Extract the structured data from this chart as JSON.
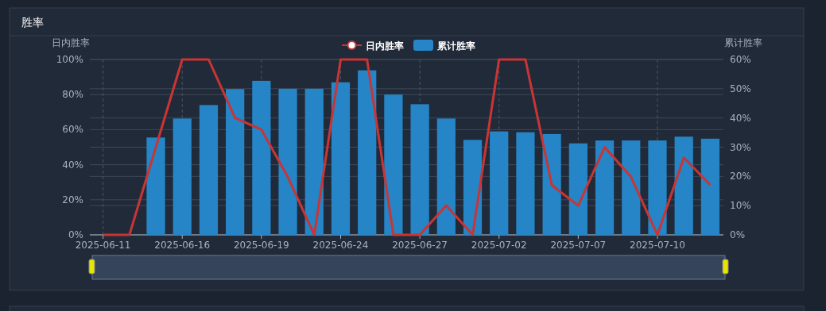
{
  "chart_data": {
    "type": "bar",
    "title": "胜率",
    "ylabel": "日内胜率",
    "y2label": "累计胜率",
    "categories": [
      "2025-06-11",
      null,
      null,
      "2025-06-16",
      null,
      null,
      "2025-06-19",
      null,
      null,
      "2025-06-24",
      null,
      null,
      "2025-06-27",
      null,
      null,
      "2025-07-02",
      null,
      null,
      "2025-07-07",
      null,
      null,
      "2025-07-10",
      null,
      null
    ],
    "series": [
      {
        "name": "日内胜率",
        "type": "line",
        "color": "#c93535",
        "values": [
          0,
          0,
          50,
          100,
          100,
          66.7,
          60,
          33,
          0,
          100,
          100,
          0,
          0,
          16.7,
          0,
          100,
          100,
          28.3,
          16.7,
          50,
          33,
          0,
          44,
          28.5
        ]
      },
      {
        "name": "累计胜率",
        "axis": "y2",
        "color": "#2585c6",
        "values": [
          null,
          null,
          33.3,
          39.8,
          44.4,
          49.9,
          52.7,
          50,
          50,
          52.2,
          56.3,
          48,
          44.7,
          39.8,
          32.5,
          35.4,
          35.1,
          34.5,
          31.3,
          32.3,
          32.3,
          32.3,
          33.6,
          32.9
        ]
      }
    ],
    "ylim": [
      0,
      100
    ],
    "yticks": [
      {
        "value": 0,
        "label": "0%"
      },
      {
        "value": 20,
        "label": "20%"
      },
      {
        "value": 40,
        "label": "40%"
      },
      {
        "value": 60,
        "label": "60%"
      },
      {
        "value": 80,
        "label": "80%"
      },
      {
        "value": 100,
        "label": "100%"
      }
    ],
    "y2lim": [
      0,
      60
    ],
    "y2ticks": [
      {
        "value": 0,
        "label": "0%"
      },
      {
        "value": 10,
        "label": "10%"
      },
      {
        "value": 20,
        "label": "20%"
      },
      {
        "value": 30,
        "label": "30%"
      },
      {
        "value": 40,
        "label": "40%"
      },
      {
        "value": 50,
        "label": "50%"
      },
      {
        "value": 60,
        "label": "60%"
      }
    ],
    "grid": true,
    "legend": "top"
  }
}
